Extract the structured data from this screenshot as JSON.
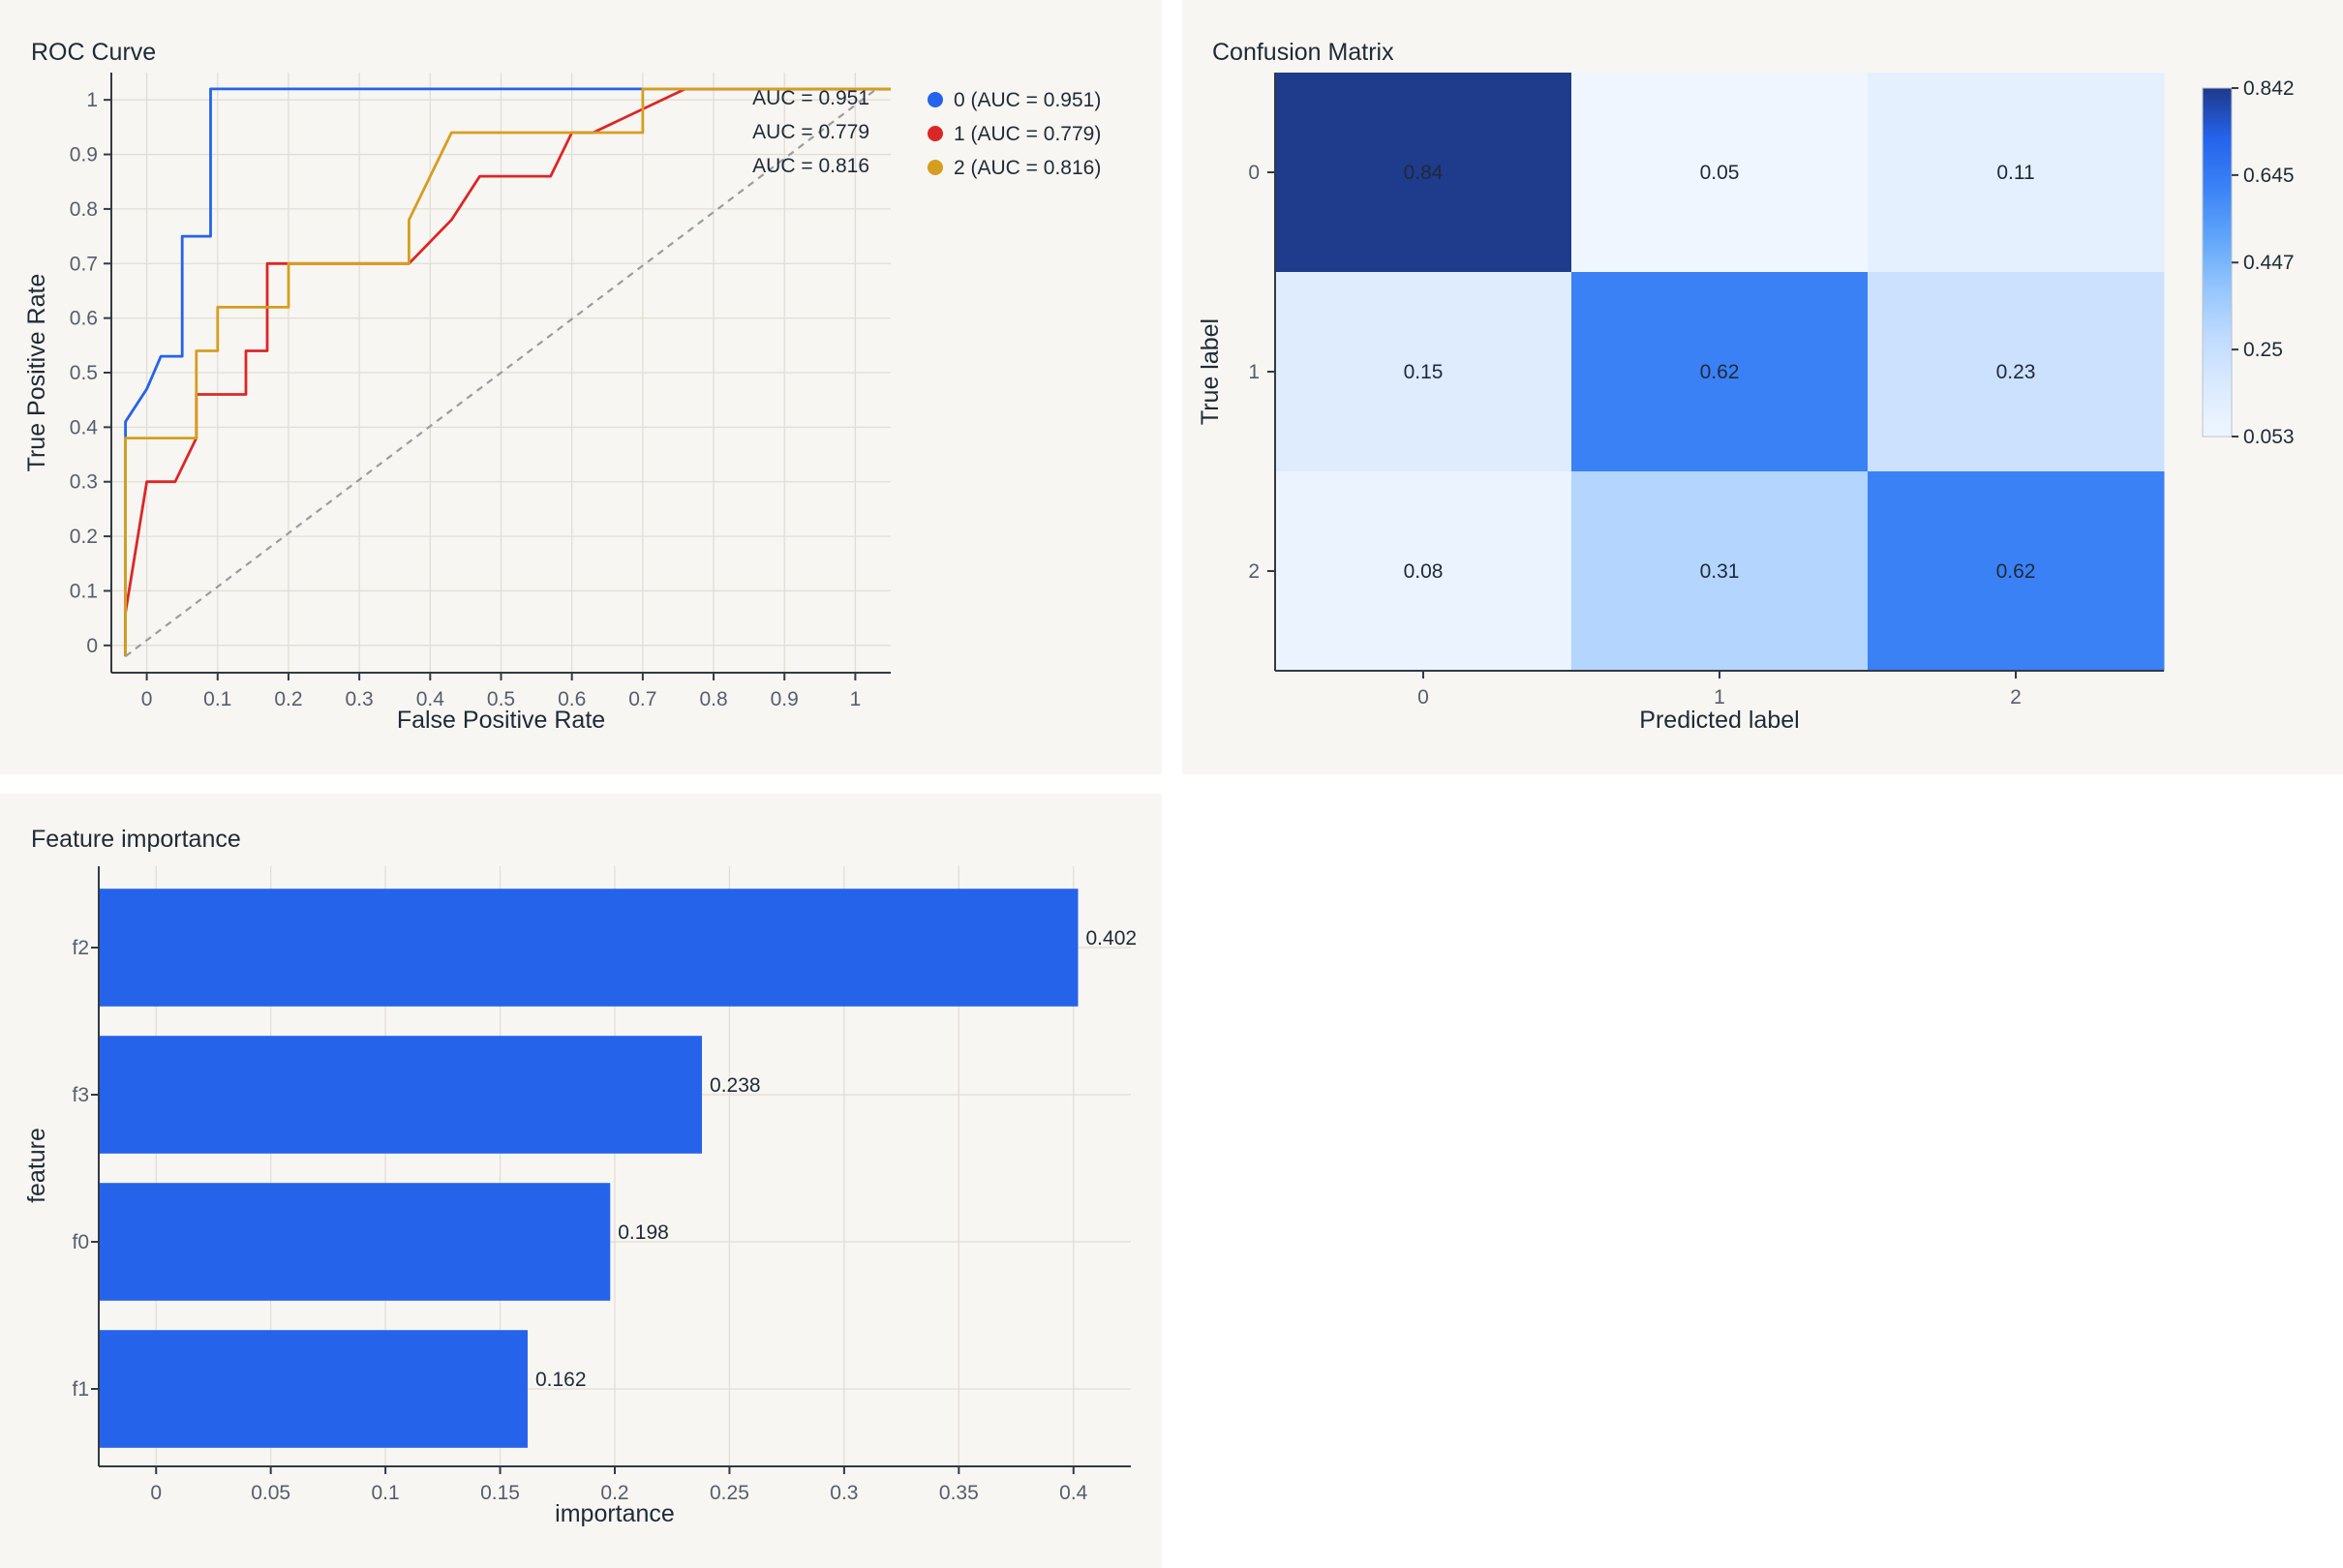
{
  "charts": {
    "roc": {
      "title": "ROC Curve"
    },
    "cm": {
      "title": "Confusion Matrix"
    },
    "fi": {
      "title": "Feature importance"
    }
  },
  "chart_data": [
    {
      "type": "line",
      "title": "ROC Curve",
      "xlabel": "False Positive Rate",
      "ylabel": "True Positive Rate",
      "xlim": [
        -0.05,
        1.05
      ],
      "ylim": [
        -0.05,
        1.05
      ],
      "xticks": [
        "0",
        "0.1",
        "0.2",
        "0.3",
        "0.4",
        "0.5",
        "0.6",
        "0.7",
        "0.8",
        "0.9",
        "1"
      ],
      "yticks": [
        "0",
        "0.1",
        "0.2",
        "0.3",
        "0.4",
        "0.5",
        "0.6",
        "0.7",
        "0.8",
        "0.9",
        "1"
      ],
      "grid": true,
      "legend_position": "right",
      "series": [
        {
          "name": "0 (AUC = 0.951)",
          "color": "#2563eb",
          "x": [
            -0.03,
            -0.03,
            0.0,
            0.02,
            0.05,
            0.05,
            0.07,
            0.09,
            0.09,
            0.14,
            1.05
          ],
          "y": [
            -0.02,
            0.41,
            0.47,
            0.53,
            0.53,
            0.75,
            0.75,
            0.75,
            1.02,
            1.02,
            1.02
          ]
        },
        {
          "name": "1 (AUC = 0.779)",
          "color": "#dc2626",
          "x": [
            -0.03,
            -0.03,
            0.0,
            0.04,
            0.07,
            0.07,
            0.14,
            0.14,
            0.17,
            0.17,
            0.37,
            0.43,
            0.47,
            0.57,
            0.6,
            0.63,
            0.76,
            1.05
          ],
          "y": [
            -0.02,
            0.06,
            0.3,
            0.3,
            0.38,
            0.46,
            0.46,
            0.54,
            0.54,
            0.7,
            0.7,
            0.78,
            0.86,
            0.86,
            0.94,
            0.94,
            1.02,
            1.02
          ],
          "steps_h": true
        },
        {
          "name": "2 (AUC = 0.816)",
          "color": "#d69e1e",
          "x": [
            -0.03,
            -0.03,
            0.07,
            0.07,
            0.1,
            0.1,
            0.2,
            0.2,
            0.37,
            0.37,
            0.43,
            0.7,
            0.7,
            1.05
          ],
          "y": [
            -0.02,
            0.38,
            0.38,
            0.54,
            0.54,
            0.62,
            0.62,
            0.7,
            0.7,
            0.78,
            0.94,
            0.94,
            1.02,
            1.02
          ]
        },
        {
          "name": "chance",
          "color": "#9c9c9c",
          "dashed": true,
          "x": [
            -0.03,
            1.03
          ],
          "y": [
            -0.02,
            1.02
          ]
        }
      ],
      "annotations": [
        "AUC = 0.951",
        "AUC = 0.779",
        "AUC = 0.816"
      ],
      "legend": [
        "0 (AUC = 0.951)",
        "1 (AUC = 0.779)",
        "2 (AUC = 0.816)"
      ]
    },
    {
      "type": "heatmap",
      "title": "Confusion Matrix",
      "xlabel": "Predicted label",
      "ylabel": "True label",
      "x_categories": [
        "0",
        "1",
        "2"
      ],
      "y_categories": [
        "0",
        "1",
        "2"
      ],
      "values": [
        [
          0.84,
          0.05,
          0.11
        ],
        [
          0.15,
          0.62,
          0.23
        ],
        [
          0.08,
          0.31,
          0.62
        ]
      ],
      "colorbar": {
        "min": 0.053,
        "max": 0.842,
        "ticks": [
          "0.842",
          "0.645",
          "0.447",
          "0.25",
          "0.053"
        ]
      },
      "colorscale": [
        "#eff6ff",
        "#dbeafe",
        "#bfdbfe",
        "#93c5fd",
        "#60a5fa",
        "#3b82f6",
        "#2563eb",
        "#1e3a8a"
      ]
    },
    {
      "type": "bar",
      "orientation": "horizontal",
      "title": "Feature importance",
      "xlabel": "importance",
      "ylabel": "feature",
      "categories": [
        "f2",
        "f3",
        "f0",
        "f1"
      ],
      "values": [
        0.402,
        0.238,
        0.198,
        0.162
      ],
      "data_labels": [
        "0.402",
        "0.238",
        "0.198",
        "0.162"
      ],
      "xlim": [
        -0.025,
        0.425
      ],
      "xticks": [
        "0",
        "0.05",
        "0.1",
        "0.15",
        "0.2",
        "0.25",
        "0.3",
        "0.35",
        "0.4"
      ],
      "bar_color": "#2563eb",
      "grid": true
    }
  ]
}
